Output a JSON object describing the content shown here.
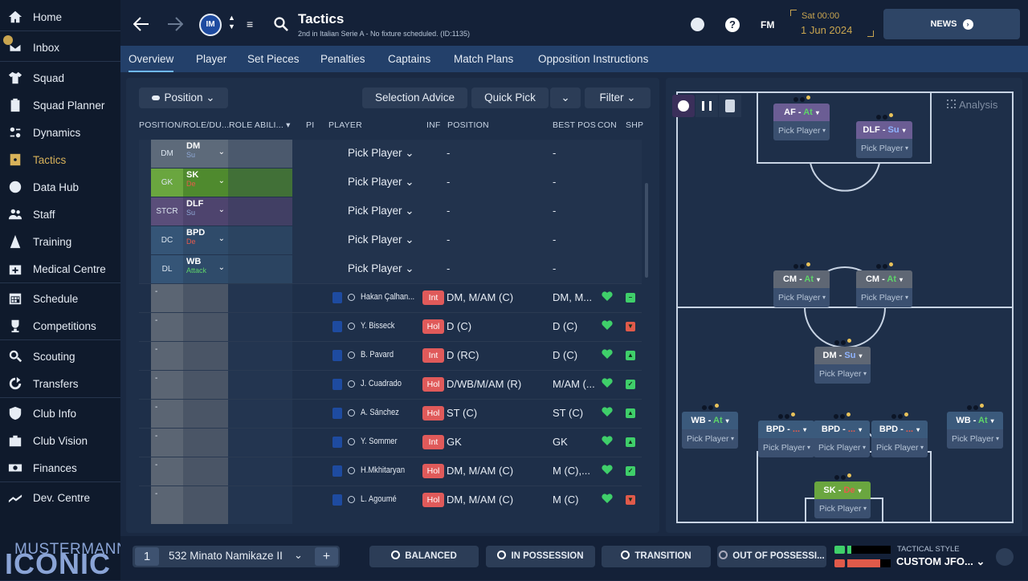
{
  "sidebar": {
    "items": [
      {
        "label": "Home",
        "icon": "home-icon"
      },
      {
        "label": "Inbox",
        "icon": "inbox-icon"
      },
      {
        "label": "Squad",
        "icon": "shirt-icon"
      },
      {
        "label": "Squad Planner",
        "icon": "clipboard-icon"
      },
      {
        "label": "Dynamics",
        "icon": "dynamics-icon"
      },
      {
        "label": "Tactics",
        "icon": "tactics-icon"
      },
      {
        "label": "Data Hub",
        "icon": "data-hub-icon"
      },
      {
        "label": "Staff",
        "icon": "staff-icon"
      },
      {
        "label": "Training",
        "icon": "training-icon"
      },
      {
        "label": "Medical Centre",
        "icon": "medical-icon"
      },
      {
        "label": "Schedule",
        "icon": "calendar-icon"
      },
      {
        "label": "Competitions",
        "icon": "trophy-icon"
      },
      {
        "label": "Scouting",
        "icon": "search-icon"
      },
      {
        "label": "Transfers",
        "icon": "transfer-icon"
      },
      {
        "label": "Club Info",
        "icon": "shield-icon"
      },
      {
        "label": "Club Vision",
        "icon": "briefcase-icon"
      },
      {
        "label": "Finances",
        "icon": "money-icon"
      },
      {
        "label": "Dev. Centre",
        "icon": "dev-centre-icon"
      }
    ],
    "brand_line1": "MUSTERMANN",
    "brand_line2": "ICONIC"
  },
  "topbar": {
    "title": "Tactics",
    "subtitle": "2nd in Italian Serie A - No fixture scheduled. (ID:1135)",
    "date_day": "Sat 00:00",
    "date": "1 Jun 2024",
    "news": "NEWS",
    "fm": "FM"
  },
  "tabs": [
    "Overview",
    "Player",
    "Set Pieces",
    "Penalties",
    "Captains",
    "Match Plans",
    "Opposition Instructions"
  ],
  "toolbar": {
    "position": "Position",
    "selection_advice": "Selection Advice",
    "quick_pick": "Quick Pick",
    "filter": "Filter"
  },
  "columns": [
    "POSITION/ROLE/DU...",
    "ROLE ABILI...",
    "PI",
    "PLAYER",
    "INF",
    "POSITION",
    "BEST POS",
    "CON",
    "SHP"
  ],
  "role_rows": [
    {
      "pos": "DM",
      "role": "DM",
      "duty": "Su",
      "pos_color": "#5d6a7a",
      "role_color": "#5d6a7a",
      "duty_color": "#8fa8d6",
      "player": "Pick Player",
      "position": "-",
      "best": "-"
    },
    {
      "pos": "GK",
      "role": "SK",
      "duty": "De",
      "pos_color": "#6aa63f",
      "role_color": "#4f8a2e",
      "duty_color": "#e85b4b",
      "player": "Pick Player",
      "position": "-",
      "best": "-"
    },
    {
      "pos": "STCR",
      "role": "DLF",
      "duty": "Su",
      "pos_color": "#5a4e7a",
      "role_color": "#4e446e",
      "duty_color": "#8fa8d6",
      "player": "Pick Player",
      "position": "-",
      "best": "-"
    },
    {
      "pos": "DC",
      "role": "BPD",
      "duty": "De",
      "pos_color": "#355577",
      "role_color": "#2f4b6a",
      "duty_color": "#e85b4b",
      "player": "Pick Player",
      "position": "-",
      "best": "-"
    },
    {
      "pos": "DL",
      "role": "WB",
      "duty": "Attack",
      "pos_color": "#355577",
      "role_color": "#2f4b6a",
      "duty_color": "#5ed36a",
      "player": "Pick Player",
      "position": "-",
      "best": "-"
    }
  ],
  "players": [
    {
      "name": "Hakan Çalhan...",
      "inf": "Int",
      "inf_color": "#e05a5a",
      "position": "DM, M/AM (C)",
      "best": "DM, M...",
      "shp_color": "#3fcf6a",
      "shp_icon": "minus"
    },
    {
      "name": "Y. Bisseck",
      "inf": "Hol",
      "inf_color": "#e05a5a",
      "position": "D (C)",
      "best": "D (C)",
      "shp_color": "#e05a4a",
      "shp_icon": "down"
    },
    {
      "name": "B. Pavard",
      "inf": "Int",
      "inf_color": "#e05a5a",
      "position": "D (RC)",
      "best": "D (C)",
      "shp_color": "#3fcf6a",
      "shp_icon": "up"
    },
    {
      "name": "J. Cuadrado",
      "inf": "Hol",
      "inf_color": "#e05a5a",
      "position": "D/WB/M/AM (R)",
      "best": "M/AM (...",
      "shp_color": "#3fcf6a",
      "shp_icon": "check"
    },
    {
      "name": "A. Sánchez",
      "inf": "Hol",
      "inf_color": "#e05a5a",
      "position": "ST (C)",
      "best": "ST (C)",
      "shp_color": "#3fcf6a",
      "shp_icon": "up"
    },
    {
      "name": "Y. Sommer",
      "inf": "Int",
      "inf_color": "#e05a5a",
      "position": "GK",
      "best": "GK",
      "shp_color": "#3fcf6a",
      "shp_icon": "up"
    },
    {
      "name": "H.Mkhitaryan",
      "inf": "Hol",
      "inf_color": "#e05a5a",
      "position": "DM, M/AM (C)",
      "best": "M (C),...",
      "shp_color": "#3fcf6a",
      "shp_icon": "check"
    },
    {
      "name": "L. Agoumé",
      "inf": "Hol",
      "inf_color": "#e05a5a",
      "position": "DM, M/AM (C)",
      "best": "M (C)",
      "shp_color": "#e05a4a",
      "shp_icon": "down"
    }
  ],
  "pitch": {
    "analysis": "Analysis",
    "cards": [
      {
        "role": "AF",
        "sep": " - ",
        "duty": "At",
        "duty_color": "#5ed36a",
        "color": "#6b5d94",
        "player": "Pick Player"
      },
      {
        "role": "DLF",
        "sep": " - ",
        "duty": "Su",
        "duty_color": "#8fb4ff",
        "color": "#6b5d94",
        "player": "Pick Player"
      },
      {
        "role": "CM",
        "sep": " - ",
        "duty": "At",
        "duty_color": "#5ed36a",
        "color": "#5f6774",
        "player": "Pick Player"
      },
      {
        "role": "CM",
        "sep": " - ",
        "duty": "At",
        "duty_color": "#5ed36a",
        "color": "#5f6774",
        "player": "Pick Player"
      },
      {
        "role": "DM",
        "sep": " - ",
        "duty": "Su",
        "duty_color": "#8fb4ff",
        "color": "#5f6774",
        "player": "Pick Player"
      },
      {
        "role": "WB",
        "sep": " - ",
        "duty": "At",
        "duty_color": "#5ed36a",
        "color": "#3b5a7c",
        "player": "Pick Player"
      },
      {
        "role": "BPD",
        "sep": " - ",
        "duty": "...",
        "duty_color": "#e85b4b",
        "color": "#3b5a7c",
        "player": "Pick Player"
      },
      {
        "role": "BPD",
        "sep": " - ",
        "duty": "...",
        "duty_color": "#e85b4b",
        "color": "#3b5a7c",
        "player": "Pick Player"
      },
      {
        "role": "BPD",
        "sep": " - ",
        "duty": "...",
        "duty_color": "#e85b4b",
        "color": "#3b5a7c",
        "player": "Pick Player"
      },
      {
        "role": "WB",
        "sep": " - ",
        "duty": "At",
        "duty_color": "#5ed36a",
        "color": "#3b5a7c",
        "player": "Pick Player"
      },
      {
        "role": "SK",
        "sep": " - ",
        "duty": "De",
        "duty_color": "#e85b4b",
        "color": "#6aa63f",
        "player": "Pick Player"
      }
    ]
  },
  "bottom": {
    "tactic_number": "1",
    "tactic_name": "532 Minato Namikaze II",
    "add": "+",
    "balanced": "BALANCED",
    "in_possession": "IN POSSESSION",
    "transition": "TRANSITION",
    "out_of_possession": "OUT OF POSSESSI...",
    "tactical_style_label": "TACTICAL STYLE",
    "tactical_style": "CUSTOM JFO...",
    "familiarity_value": 0.1,
    "intensity_value": 0.75
  }
}
